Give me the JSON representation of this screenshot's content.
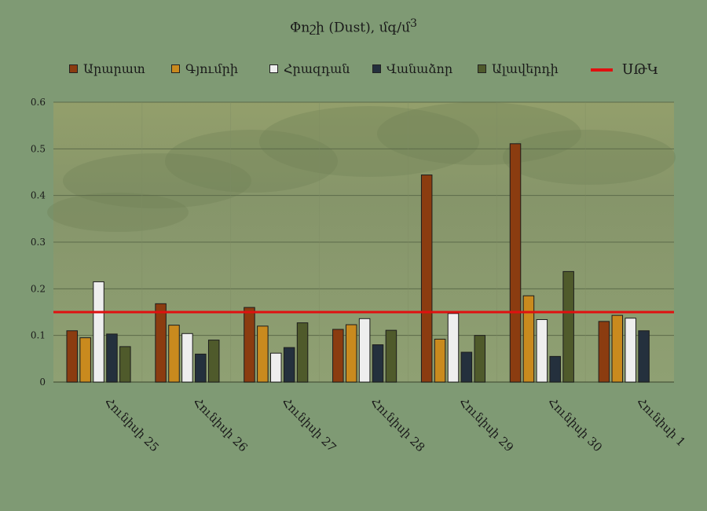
{
  "chart_data": {
    "type": "bar",
    "title": "Փոշի (Dust), մգ/մ",
    "title_sup": "3",
    "categories": [
      "Հունիսի 25",
      "Հունիսի 26",
      "Հունիսի 27",
      "Հունիսի 28",
      "Հունիսի 29",
      "Հունիսի 30",
      "Հունիսի 1"
    ],
    "series": [
      {
        "name": "Արարատ",
        "color": "#8b3c10",
        "values": [
          0.11,
          0.168,
          0.16,
          0.113,
          0.444,
          0.511,
          0.13
        ]
      },
      {
        "name": "Գյումրի",
        "color": "#c98a1e",
        "values": [
          0.095,
          0.122,
          0.12,
          0.123,
          0.092,
          0.185,
          0.143
        ]
      },
      {
        "name": "Հրազդան",
        "color": "#eeeeee",
        "values": [
          0.215,
          0.104,
          0.062,
          0.136,
          0.147,
          0.134,
          0.137
        ]
      },
      {
        "name": "Վանաձոր",
        "color": "#24303d",
        "values": [
          0.103,
          0.06,
          0.074,
          0.08,
          0.064,
          0.055,
          0.11
        ]
      },
      {
        "name": "Ալավերդի",
        "color": "#4f5a2b",
        "values": [
          0.076,
          0.09,
          0.127,
          0.111,
          0.1,
          0.237,
          null
        ]
      }
    ],
    "reference_line": {
      "name": "ՍԹԿ",
      "value": 0.15,
      "color": "#e01010"
    },
    "ylim": [
      0,
      0.6
    ],
    "yticks": [
      "0",
      "0.1",
      "0.2",
      "0.3",
      "0.4",
      "0.5",
      "0.6"
    ],
    "grid": true,
    "legend_position": "top"
  }
}
